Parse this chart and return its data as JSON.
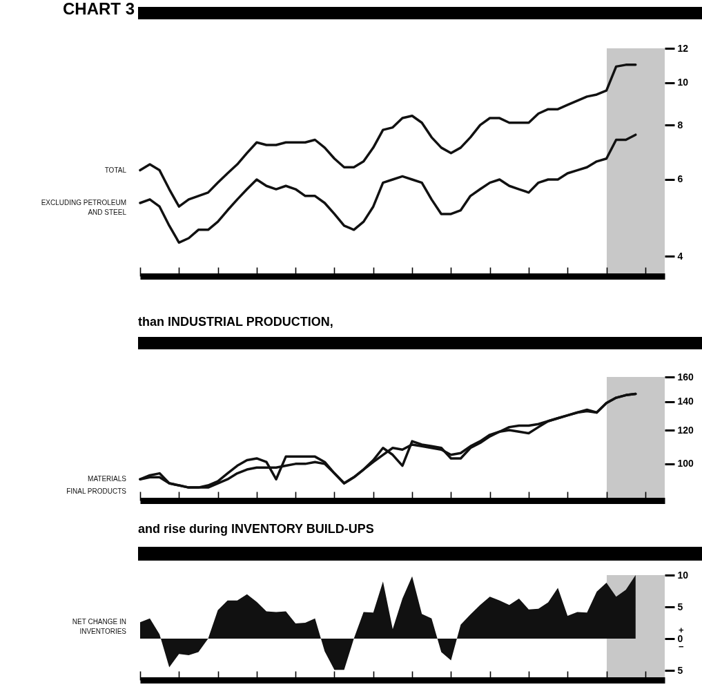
{
  "chart_data": [
    {
      "type": "line",
      "title": "CHART 3",
      "log": true,
      "categories": [
        null,
        null,
        null,
        null,
        null,
        null,
        null,
        null,
        null,
        null,
        null,
        null,
        null,
        null,
        null,
        null,
        null,
        null,
        null,
        null,
        null,
        null,
        null,
        null,
        null,
        null,
        null,
        null,
        null,
        null,
        null,
        null,
        null,
        null,
        null,
        null,
        null,
        null,
        null,
        null,
        null,
        null,
        null,
        null,
        null,
        null,
        null,
        null,
        null,
        null,
        null,
        null,
        null,
        null,
        null
      ],
      "ylim": [
        3.6,
        12
      ],
      "yticks": [
        4,
        6,
        8,
        10,
        12
      ],
      "tick_labels": "y",
      "series": [
        {
          "name": "TOTAL",
          "color": "#111111",
          "values": [
            6.3,
            6.5,
            6.3,
            5.7,
            5.2,
            5.4,
            5.5,
            5.6,
            5.9,
            6.2,
            6.5,
            6.9,
            7.3,
            7.2,
            7.2,
            7.3,
            7.3,
            7.3,
            7.4,
            7.1,
            6.7,
            6.4,
            6.4,
            6.6,
            7.1,
            7.8,
            7.9,
            8.3,
            8.4,
            8.1,
            7.5,
            7.1,
            6.9,
            7.1,
            7.5,
            8.0,
            8.3,
            8.3,
            8.1,
            8.1,
            8.1,
            8.5,
            8.7,
            8.7,
            8.9,
            9.1,
            9.3,
            9.4,
            9.6,
            10.9,
            11.0,
            11.0,
            null,
            null,
            null
          ]
        },
        {
          "name": "EXCLUDING PETROLEUM AND STEEL",
          "color": "#111111",
          "values": [
            5.3,
            5.4,
            5.2,
            4.7,
            4.3,
            4.4,
            4.6,
            4.6,
            4.8,
            5.1,
            5.4,
            5.7,
            6.0,
            5.8,
            5.7,
            5.8,
            5.7,
            5.5,
            5.5,
            5.3,
            5.0,
            4.7,
            4.6,
            4.8,
            5.2,
            5.9,
            6.0,
            6.1,
            6.0,
            5.9,
            5.4,
            5.0,
            5.0,
            5.1,
            5.5,
            5.7,
            5.9,
            6.0,
            5.8,
            5.7,
            5.6,
            5.9,
            6.0,
            6.0,
            6.2,
            6.3,
            6.4,
            6.6,
            6.7,
            7.4,
            7.4,
            7.6,
            null,
            null,
            null
          ]
        }
      ]
    },
    {
      "type": "line",
      "title": "than INDUSTRIAL PRODUCTION,",
      "log": true,
      "categories": [
        null,
        null,
        null,
        null,
        null,
        null,
        null,
        null,
        null,
        null,
        null,
        null,
        null,
        null,
        null,
        null,
        null,
        null,
        null,
        null,
        null,
        null,
        null,
        null,
        null,
        null,
        null,
        null,
        null,
        null,
        null,
        null,
        null,
        null,
        null,
        null,
        null,
        null,
        null,
        null,
        null,
        null,
        null,
        null,
        null,
        null,
        null,
        null,
        null,
        null,
        null,
        null,
        null,
        null,
        null
      ],
      "ylim": [
        82,
        160
      ],
      "yticks": [
        100,
        120,
        140,
        160
      ],
      "tick_labels": "y",
      "series": [
        {
          "name": "MATERIALS",
          "color": "#111111",
          "values": [
            92,
            94,
            95,
            90,
            89,
            88,
            88,
            89,
            91,
            95,
            99,
            102,
            103,
            101,
            92,
            104,
            104,
            104,
            104,
            101,
            95,
            90,
            93,
            97,
            102,
            109,
            105,
            99,
            113,
            111,
            110,
            109,
            103,
            103,
            109,
            112,
            116,
            119,
            122,
            123,
            123,
            124,
            126,
            128,
            130,
            132,
            134,
            132,
            139,
            143,
            145,
            146,
            null,
            null,
            null
          ]
        },
        {
          "name": "FINAL PRODUCTS",
          "color": "#111111",
          "values": [
            92,
            93,
            93,
            90,
            89,
            88,
            88,
            88,
            90,
            92,
            95,
            97,
            98,
            98,
            98,
            99,
            100,
            100,
            101,
            100,
            95,
            90,
            93,
            97,
            101,
            105,
            109,
            108,
            111,
            110,
            109,
            108,
            105,
            106,
            110,
            113,
            117,
            119,
            120,
            119,
            118,
            122,
            126,
            128,
            130,
            132,
            133,
            132,
            139,
            143,
            145,
            146,
            null,
            null,
            null
          ]
        }
      ]
    },
    {
      "type": "area",
      "title": "and rise during INVENTORY BUILD-UPS",
      "categories": [
        null,
        null,
        null,
        null,
        null,
        null,
        null,
        null,
        null,
        null,
        null,
        null,
        null,
        null,
        null,
        null,
        null,
        null,
        null,
        null,
        null,
        null,
        null,
        null,
        null,
        null,
        null,
        null,
        null,
        null,
        null,
        null,
        null,
        null,
        null,
        null,
        null,
        null,
        null,
        null,
        null,
        null,
        null,
        null,
        null,
        null,
        null,
        null,
        null,
        null,
        null,
        null,
        null,
        null,
        null
      ],
      "ylim": [
        -6.5,
        10
      ],
      "yticks": [
        10,
        5,
        0,
        {
          "value": -5,
          "label": "5"
        }
      ],
      "tick_labels": "y",
      "annotations": [
        "+",
        "−"
      ],
      "series": [
        {
          "name": "NET CHANGE IN INVENTORIES",
          "color": "#111111",
          "values": [
            2.6,
            3.2,
            0.7,
            -4.5,
            -2.4,
            -2.6,
            -2.1,
            0.0,
            4.5,
            6.0,
            6.0,
            7.0,
            5.8,
            4.3,
            4.2,
            4.3,
            2.4,
            2.5,
            3.2,
            -2.0,
            -4.9,
            -4.9,
            0,
            4.2,
            4.1,
            9.0,
            1.5,
            6.3,
            9.8,
            3.9,
            3.2,
            -2.1,
            -3.4,
            2.2,
            3.8,
            5.3,
            6.6,
            6.0,
            5.3,
            6.3,
            4.6,
            4.7,
            5.7,
            8.0,
            3.6,
            4.2,
            4.1,
            7.4,
            8.8,
            6.6,
            7.7,
            10.0,
            null,
            null,
            null
          ]
        }
      ]
    }
  ]
}
